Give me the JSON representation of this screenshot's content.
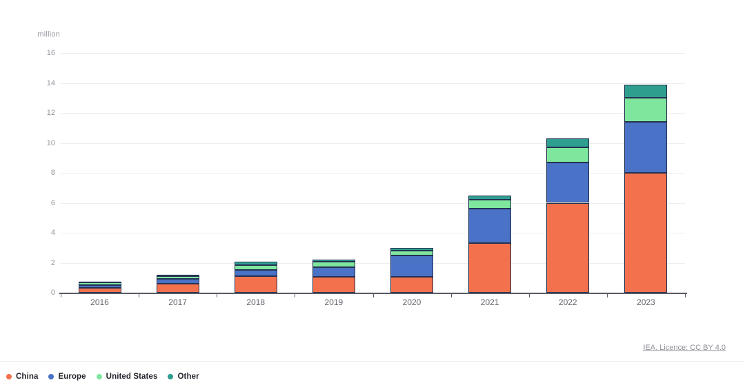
{
  "attribution": {
    "label": "IEA. Licence: CC BY 4.0"
  },
  "chart_data": {
    "type": "bar",
    "stacked": true,
    "title": "",
    "xlabel": "",
    "ylabel": "million",
    "ylim": [
      0,
      16
    ],
    "yticks": [
      0,
      2,
      4,
      6,
      8,
      10,
      12,
      14,
      16
    ],
    "grid": true,
    "legend_position": "bottom-left",
    "categories": [
      "2016",
      "2017",
      "2018",
      "2019",
      "2020",
      "2021",
      "2022",
      "2023"
    ],
    "series": [
      {
        "name": "China",
        "color": "#F3714C",
        "values": [
          0.32,
          0.6,
          1.1,
          1.05,
          1.05,
          3.3,
          6.0,
          8.0
        ]
      },
      {
        "name": "Europe",
        "color": "#4A72C6",
        "values": [
          0.2,
          0.3,
          0.4,
          0.65,
          1.45,
          2.3,
          2.7,
          3.4
        ]
      },
      {
        "name": "United States",
        "color": "#7FE69D",
        "values": [
          0.16,
          0.2,
          0.35,
          0.35,
          0.3,
          0.6,
          1.0,
          1.6
        ]
      },
      {
        "name": "Other",
        "color": "#2E9E8F",
        "values": [
          0.07,
          0.1,
          0.2,
          0.15,
          0.2,
          0.3,
          0.6,
          0.9
        ]
      }
    ]
  },
  "colors": {
    "axis": "#5b5b66",
    "grid": "#ededf0",
    "bar_border": "#243253",
    "y_tick_label": "#95959e",
    "x_tick_label": "#64646e",
    "legend_text": "#26262e",
    "link": "#8d8d97",
    "divider": "#e9e9eb"
  }
}
